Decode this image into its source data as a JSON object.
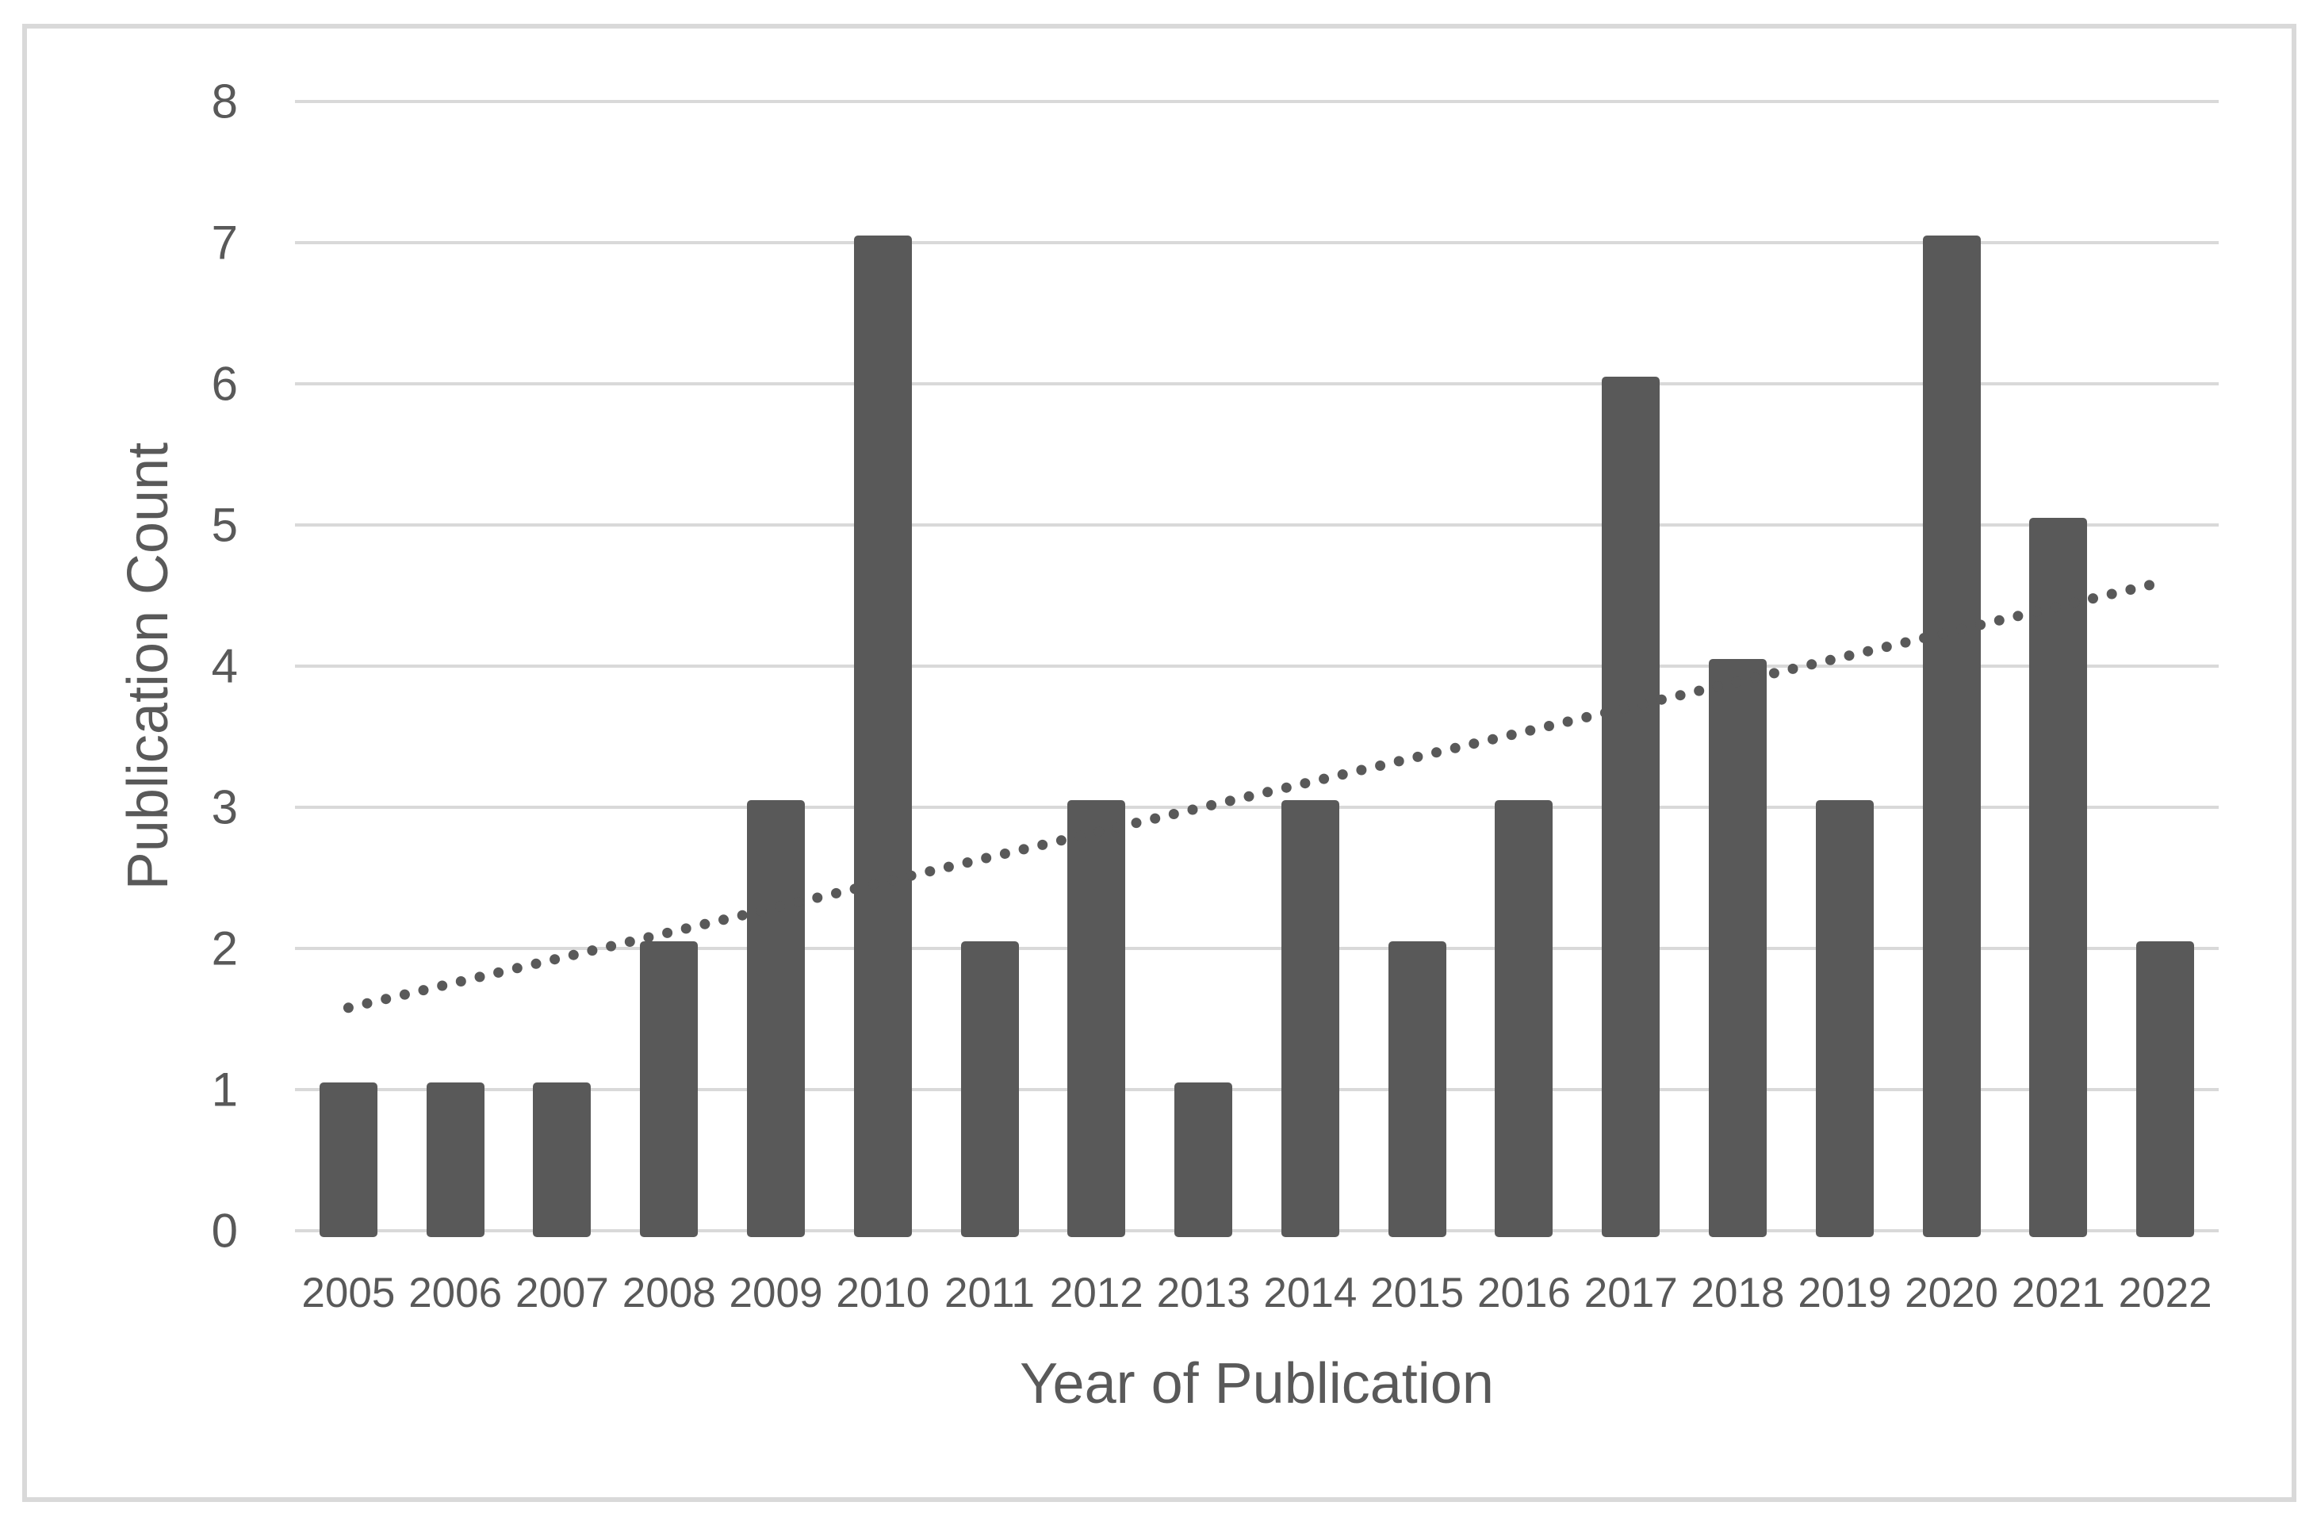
{
  "chart_data": {
    "type": "bar",
    "title": "",
    "xlabel": "Year of Publication",
    "ylabel": "Publication Count",
    "categories": [
      "2005",
      "2006",
      "2007",
      "2008",
      "2009",
      "2010",
      "2011",
      "2012",
      "2013",
      "2014",
      "2015",
      "2016",
      "2017",
      "2018",
      "2019",
      "2020",
      "2021",
      "2022"
    ],
    "values": [
      1,
      1,
      1,
      2,
      3,
      7,
      2,
      3,
      1,
      3,
      2,
      3,
      6,
      4,
      3,
      7,
      5,
      2
    ],
    "yticks": [
      0,
      1,
      2,
      3,
      4,
      5,
      6,
      7,
      8
    ],
    "ylim": [
      0,
      8
    ],
    "grid": "horizontal",
    "legend": "none",
    "trendline": {
      "style": "dotted",
      "start_category": "2005",
      "end_category": "2022",
      "start_value": 1.58,
      "end_value": 4.6
    }
  },
  "colors": {
    "bar": "#595959",
    "trendline": "#595959",
    "gridline": "#d9d9d9",
    "text": "#595959",
    "figure_border": "#d9d9d9",
    "background": "#ffffff"
  }
}
